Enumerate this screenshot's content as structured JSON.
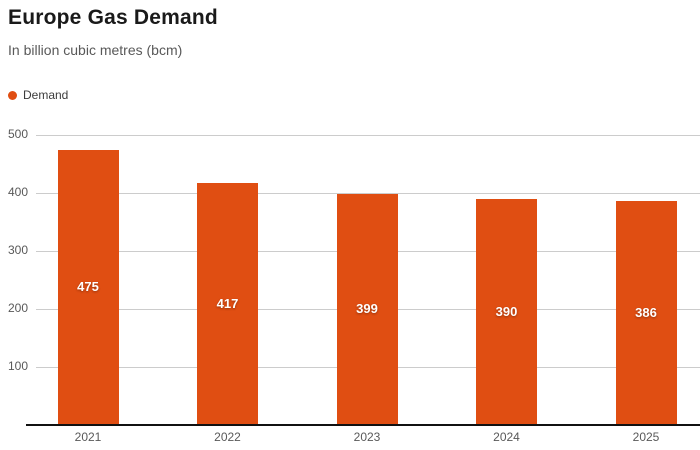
{
  "header": {
    "title": "Europe Gas Demand",
    "subtitle": "In billion cubic metres (bcm)"
  },
  "legend": {
    "items": [
      {
        "label": "Demand",
        "color": "#e04e12"
      }
    ]
  },
  "colors": {
    "bar": "#e04e12",
    "gridline": "#cccccc",
    "axis": "#111111",
    "tick_text": "#595959",
    "title_text": "#1a1a1a",
    "value_label_text": "#ffffff"
  },
  "chart_data": {
    "type": "bar",
    "title": "Europe Gas Demand",
    "subtitle": "In billion cubic metres (bcm)",
    "xlabel": "",
    "ylabel": "",
    "categories": [
      "2021",
      "2022",
      "2023",
      "2024",
      "2025"
    ],
    "series": [
      {
        "name": "Demand",
        "color": "#e04e12",
        "values": [
          475,
          417,
          399,
          390,
          386
        ]
      }
    ],
    "value_labels": [
      "475",
      "417",
      "399",
      "390",
      "386"
    ],
    "ylim": [
      0,
      500
    ],
    "yticks": [
      100,
      200,
      300,
      400,
      500
    ],
    "grid": true,
    "legend_position": "top-left",
    "bar_labels_inside": true
  }
}
